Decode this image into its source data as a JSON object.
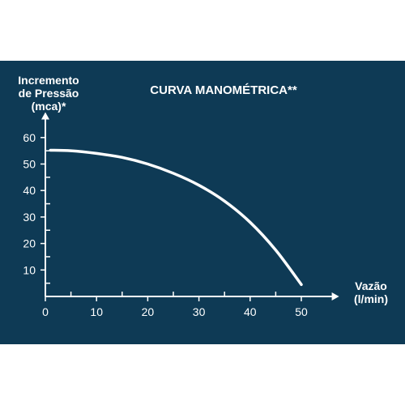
{
  "chart_data": {
    "type": "line",
    "title": "CURVA MANOMÉTRICA**",
    "ylabel_lines": [
      "Incremento",
      "de Pressão",
      "(mca)*"
    ],
    "xlabel_lines": [
      "Vazão",
      "(l/min)"
    ],
    "x_ticks": [
      0,
      10,
      20,
      30,
      40,
      50
    ],
    "y_ticks": [
      10,
      20,
      30,
      40,
      50,
      60
    ],
    "xlim": [
      0,
      55
    ],
    "ylim": [
      0,
      65
    ],
    "grid": false,
    "series": [
      {
        "x": [
          1,
          5,
          10,
          15,
          20,
          25,
          30,
          35,
          40,
          45,
          50
        ],
        "y": [
          55.2,
          55,
          54,
          52.5,
          50,
          46.5,
          42,
          36,
          28,
          17.5,
          4.5
        ]
      }
    ],
    "colors": {
      "background": "#0e3a55",
      "foreground": "#ffffff"
    }
  }
}
